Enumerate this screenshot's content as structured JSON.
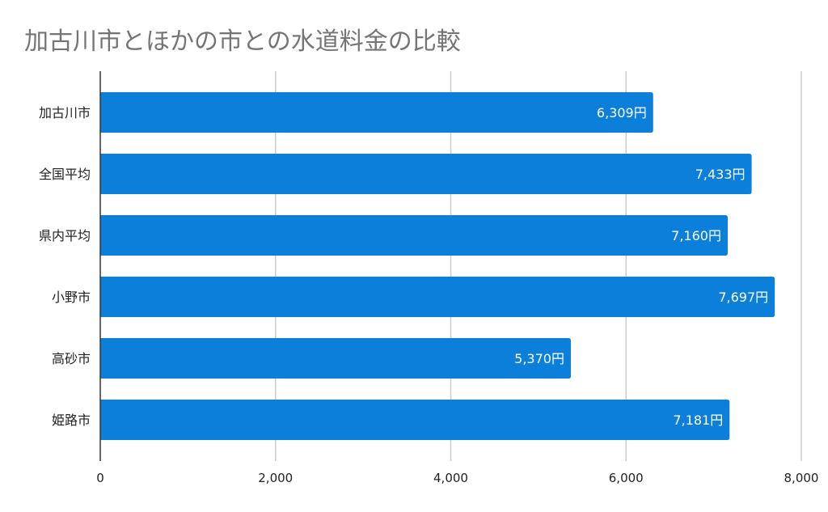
{
  "chart_data": {
    "type": "bar",
    "orientation": "horizontal",
    "title": "加古川市とほかの市との水道料金の比較",
    "categories": [
      "加古川市",
      "全国平均",
      "県内平均",
      "小野市",
      "高砂市",
      "姫路市"
    ],
    "values": [
      6309,
      7433,
      7160,
      7697,
      5370,
      7181
    ],
    "data_labels": [
      "6,309円",
      "7,433円",
      "7,160円",
      "7,697円",
      "5,370円",
      "7,181円"
    ],
    "xlim": [
      0,
      8000
    ],
    "x_ticks": [
      0,
      2000,
      4000,
      6000,
      8000
    ],
    "x_tick_labels": [
      "0",
      "2,000",
      "4,000",
      "6,000",
      "8,000"
    ],
    "grid": true,
    "legend": "none",
    "colors": {
      "bar": "#0b7fd9",
      "grid": "#cccccc",
      "title": "#757575"
    }
  }
}
